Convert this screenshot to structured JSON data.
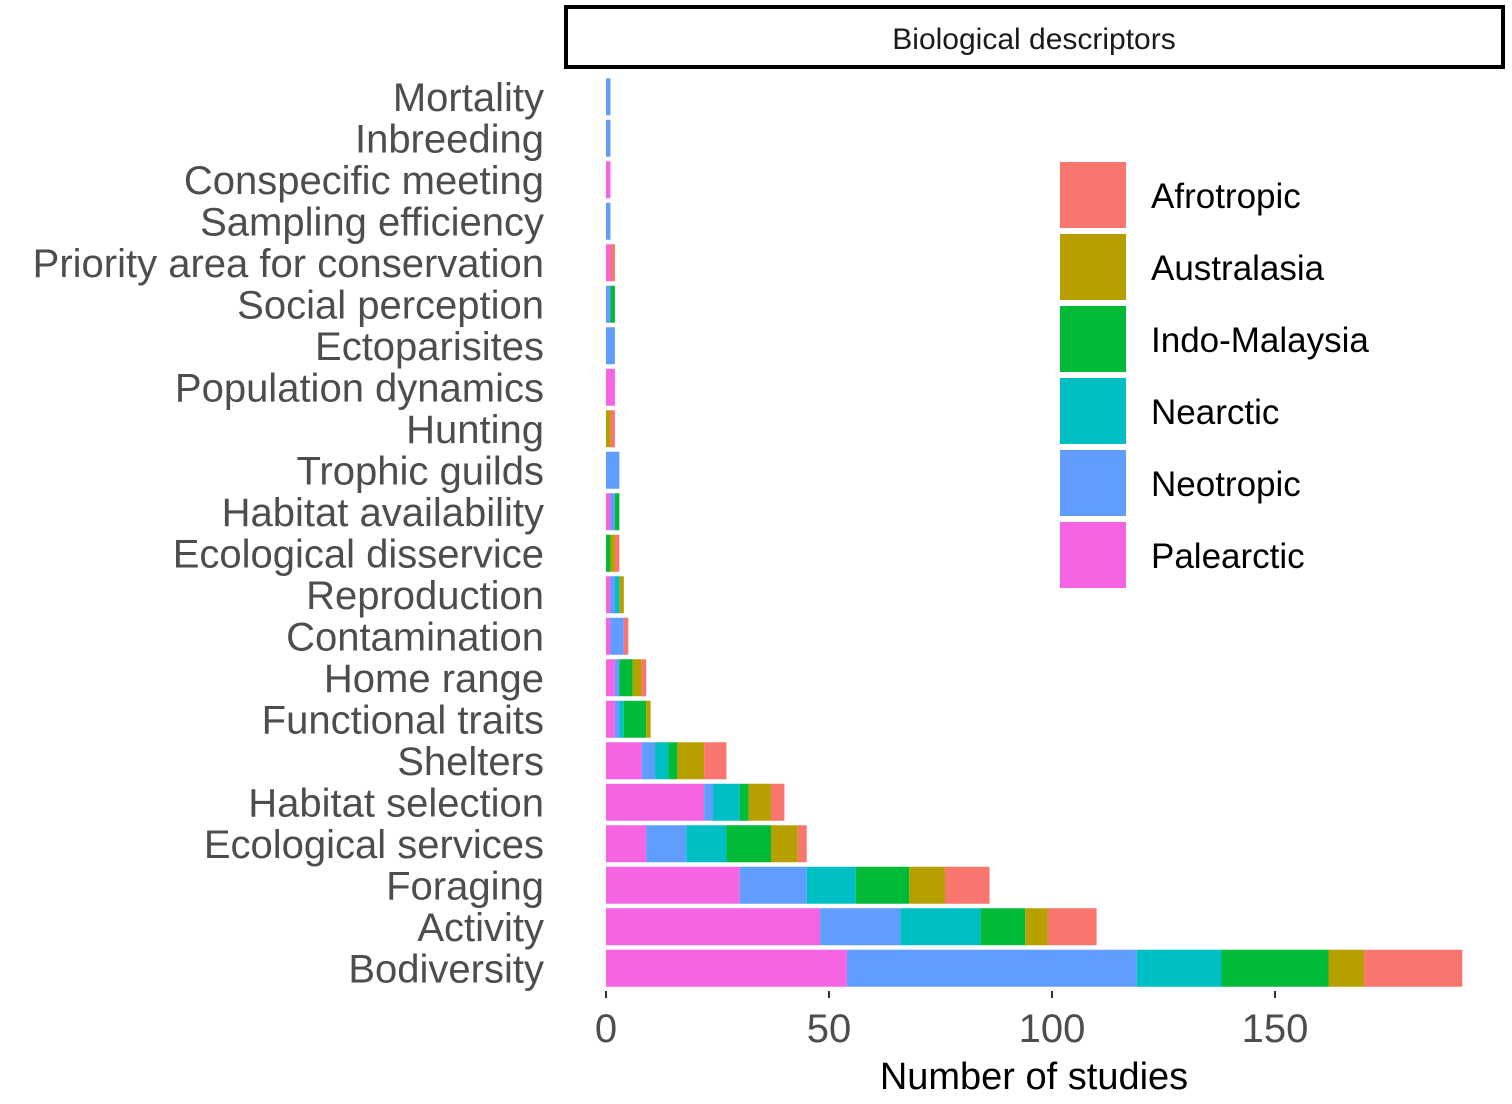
{
  "chart_data": {
    "type": "bar",
    "orientation": "horizontal",
    "stacked": true,
    "strip_title": "Biological descriptors",
    "xlabel": "Number of studies",
    "ylabel": "",
    "xlim": [
      0,
      192
    ],
    "x_ticks": [
      0,
      50,
      100,
      150
    ],
    "x_tick_labels": [
      "0",
      "50",
      "100",
      "150"
    ],
    "grid": false,
    "legend_position": "top-right inside",
    "categories": [
      "Mortality",
      "Inbreeding",
      "Conspecific meeting",
      "Sampling efficiency",
      "Priority area for conservation",
      "Social perception",
      "Ectoparisites",
      "Population dynamics",
      "Hunting",
      "Trophic guilds",
      "Habitat availability",
      "Ecological disservice",
      "Reproduction",
      "Contamination",
      "Home range",
      "Functional traits",
      "Shelters",
      "Habitat selection",
      "Ecological services",
      "Foraging",
      "Activity",
      "Bodiversity"
    ],
    "series": [
      {
        "name": "Palearctic",
        "color": "#F564E3",
        "values": [
          0,
          0,
          1,
          0,
          1,
          0,
          0,
          2,
          0,
          0,
          1,
          0,
          1,
          1,
          2,
          2,
          8,
          22,
          9,
          30,
          48,
          54
        ]
      },
      {
        "name": "Neotropic",
        "color": "#619CFF",
        "values": [
          1,
          1,
          0,
          1,
          0,
          1,
          2,
          0,
          0,
          3,
          1,
          0,
          1,
          3,
          1,
          1,
          3,
          2,
          9,
          15,
          18,
          65
        ]
      },
      {
        "name": "Nearctic",
        "color": "#00BFC4",
        "values": [
          0,
          0,
          0,
          0,
          0,
          0,
          0,
          0,
          0,
          0,
          0,
          0,
          1,
          0,
          0,
          1,
          3,
          6,
          9,
          11,
          18,
          19
        ]
      },
      {
        "name": "Indo-Malaysia",
        "color": "#00BA38",
        "values": [
          0,
          0,
          0,
          0,
          0,
          1,
          0,
          0,
          0,
          0,
          1,
          1,
          0,
          0,
          3,
          5,
          2,
          2,
          10,
          12,
          10,
          24
        ]
      },
      {
        "name": "Australasia",
        "color": "#B79F00",
        "values": [
          0,
          0,
          0,
          0,
          0,
          0,
          0,
          0,
          1,
          0,
          0,
          1,
          1,
          0,
          2,
          1,
          6,
          5,
          6,
          8,
          5,
          8
        ]
      },
      {
        "name": "Afrotropic",
        "color": "#F8766D",
        "values": [
          0,
          0,
          0,
          0,
          1,
          0,
          0,
          0,
          1,
          0,
          0,
          1,
          0,
          1,
          1,
          0,
          5,
          3,
          2,
          10,
          11,
          22
        ]
      }
    ],
    "legend_order": [
      "Afrotropic",
      "Australasia",
      "Indo-Malaysia",
      "Nearctic",
      "Neotropic",
      "Palearctic"
    ]
  }
}
